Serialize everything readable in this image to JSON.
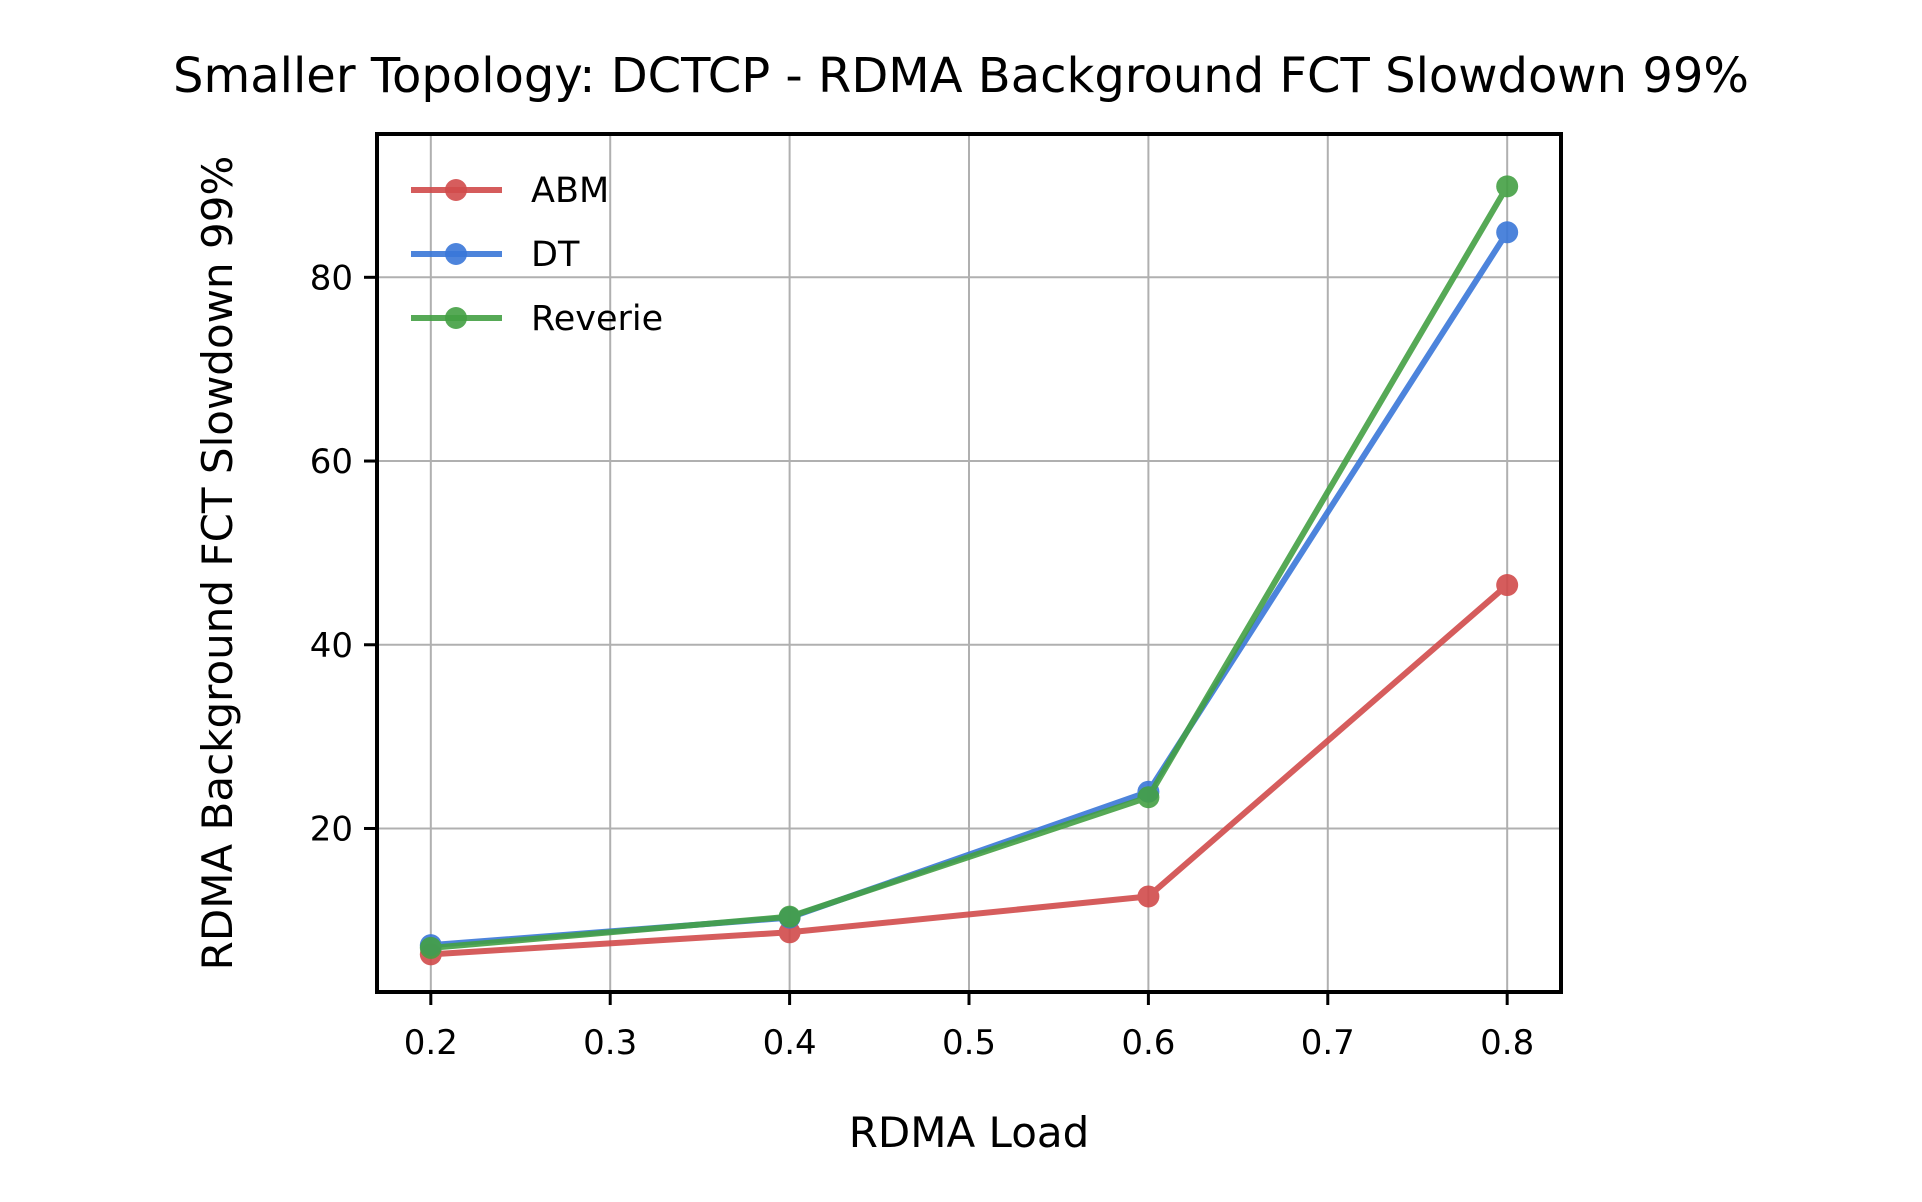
{
  "chart_data": {
    "type": "line",
    "title": "Smaller Topology: DCTCP - RDMA Background FCT Slowdown 99%",
    "xlabel": "RDMA Load",
    "ylabel": "RDMA Background FCT Slowdown 99%",
    "x": [
      0.2,
      0.4,
      0.6,
      0.8
    ],
    "xlim": [
      0.17,
      0.83
    ],
    "ylim": [
      2.2,
      95.6
    ],
    "xticks": [
      0.2,
      0.3,
      0.4,
      0.5,
      0.6,
      0.7,
      0.8
    ],
    "xtick_labels": [
      "0.2",
      "0.3",
      "0.4",
      "0.5",
      "0.6",
      "0.7",
      "0.8"
    ],
    "yticks": [
      20,
      40,
      60,
      80
    ],
    "ytick_labels": [
      "20",
      "40",
      "60",
      "80"
    ],
    "grid": true,
    "legend_position": "top-left",
    "series": [
      {
        "name": "ABM",
        "color": "#d14b4b",
        "values": [
          6.3,
          8.7,
          12.6,
          46.5
        ]
      },
      {
        "name": "DT",
        "color": "#3a77d8",
        "values": [
          7.3,
          10.3,
          24.0,
          84.9
        ]
      },
      {
        "name": "Reverie",
        "color": "#44a044",
        "values": [
          7.0,
          10.4,
          23.4,
          89.9
        ]
      }
    ]
  }
}
